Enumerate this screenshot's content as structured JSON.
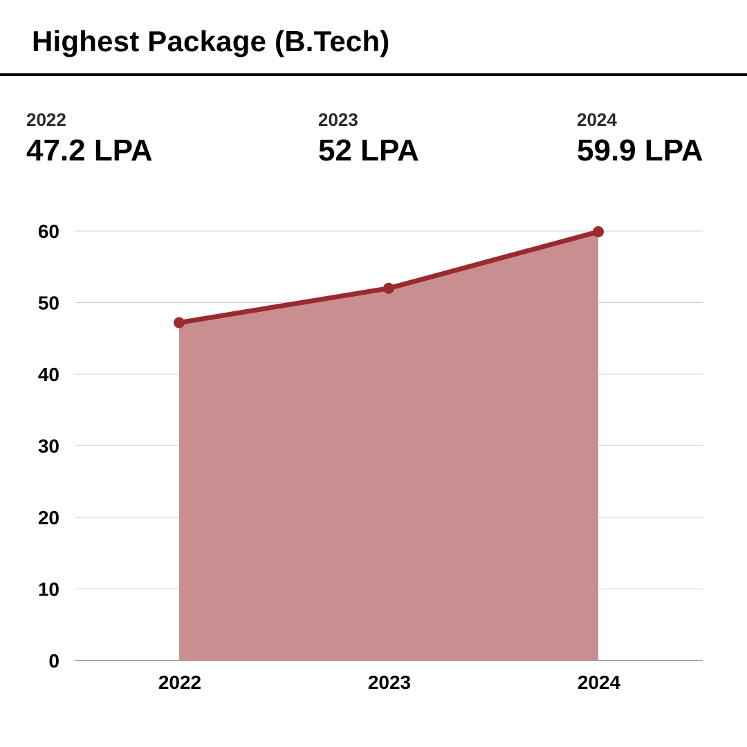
{
  "title": "Highest Package (B.Tech)",
  "stats": [
    {
      "year": "2022",
      "value": "47.2 LPA"
    },
    {
      "year": "2023",
      "value": "52 LPA"
    },
    {
      "year": "2024",
      "value": "59.9 LPA"
    }
  ],
  "colors": {
    "line": "#9b2a2f",
    "area": "#c98f90",
    "grid": "#cfcfcf",
    "axis": "#888888"
  },
  "chart_data": {
    "type": "area",
    "title": "",
    "xlabel": "",
    "ylabel": "",
    "categories": [
      "2022",
      "2023",
      "2024"
    ],
    "values": [
      47.2,
      52,
      59.9
    ],
    "ylim": [
      0,
      60
    ],
    "yticks": [
      0,
      10,
      20,
      30,
      40,
      50,
      60
    ],
    "grid": true,
    "legend": "none"
  }
}
